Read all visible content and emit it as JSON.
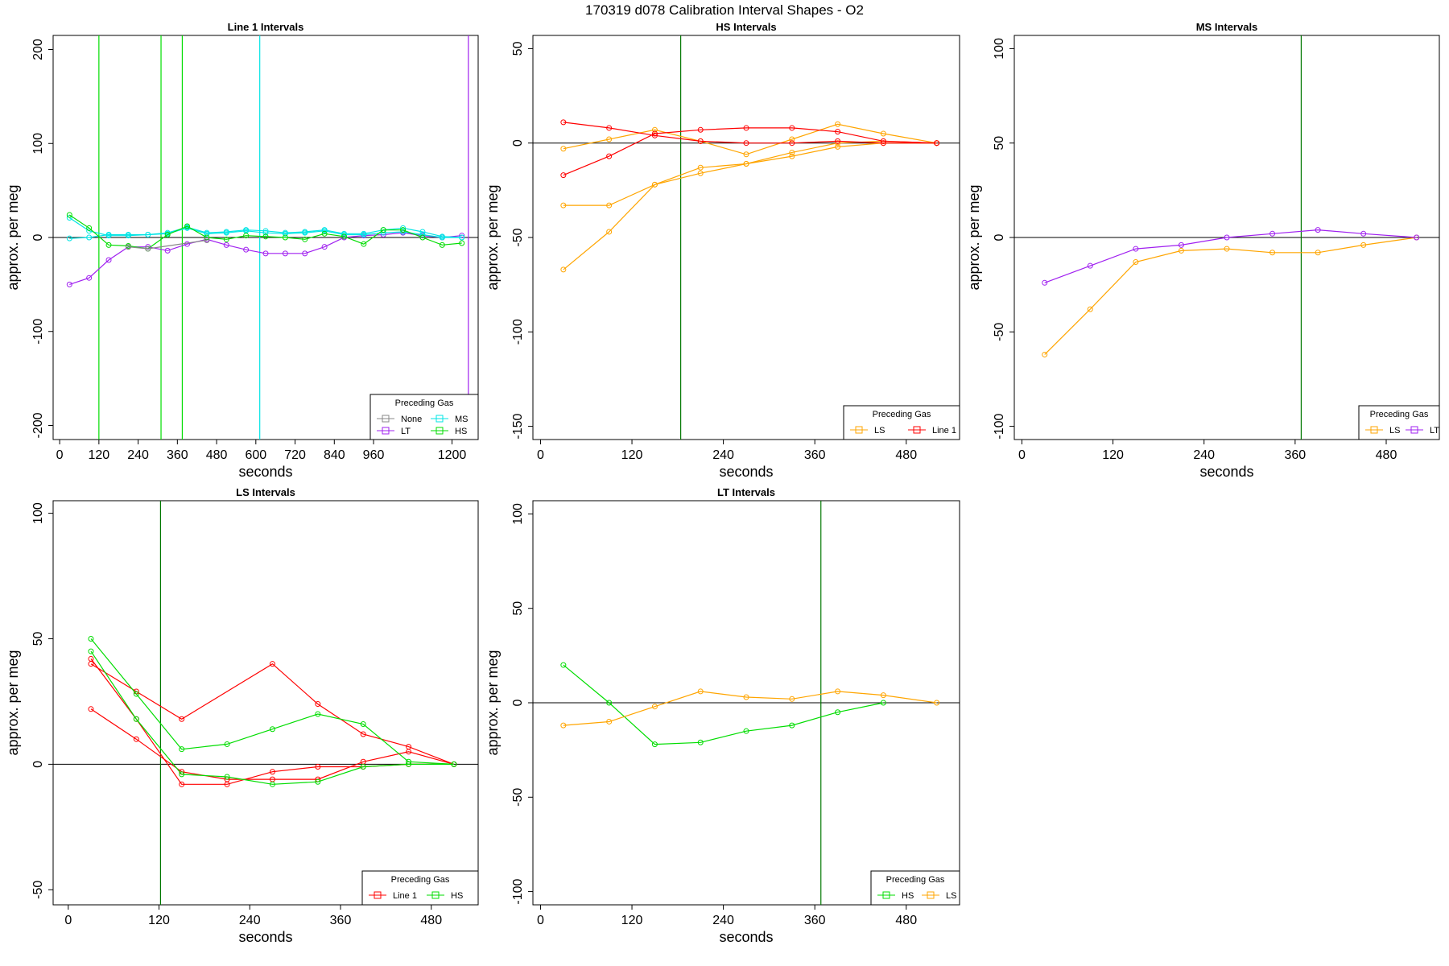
{
  "page_title": "170319   d078   Calibration Interval Shapes - O2",
  "legend_title": "Preceding Gas",
  "colors": {
    "None": "#888888",
    "LT": "#a020f0",
    "MS": "#00e5e5",
    "HS": "#00dd00",
    "LS": "#ffa500",
    "Line 1": "#ff0000",
    "vline": "#007700"
  },
  "chart_data": [
    {
      "type": "line",
      "title": "Line 1 Intervals",
      "xlabel": "seconds",
      "ylabel": "approx. per meg",
      "xlim": [
        -20,
        1280
      ],
      "ylim": [
        -215,
        215
      ],
      "xticks": [
        0,
        120,
        240,
        360,
        480,
        600,
        720,
        840,
        960,
        1200
      ],
      "yticks": [
        -200,
        -100,
        0,
        100,
        200
      ],
      "hline": 0,
      "legend_position": "bottom-right",
      "legend": [
        "None",
        "MS",
        "LT",
        "HS"
      ],
      "vlines": [
        {
          "x": 120,
          "color": "HS"
        },
        {
          "x": 310,
          "color": "HS"
        },
        {
          "x": 375,
          "color": "HS"
        },
        {
          "x": 612,
          "color": "MS"
        },
        {
          "x": 1250,
          "color": "LT"
        }
      ],
      "series": [
        {
          "name": "LT",
          "x": [
            30,
            90,
            150,
            210,
            270,
            330,
            390,
            450,
            510,
            570,
            630,
            690,
            750,
            810,
            870,
            930,
            990,
            1050,
            1110,
            1170,
            1230
          ],
          "y": [
            -50,
            -43,
            -24,
            -10,
            -10,
            -14,
            -7,
            -2,
            -8,
            -13,
            -17,
            -17,
            -17,
            -10,
            0,
            2,
            3,
            5,
            2,
            0,
            2
          ]
        },
        {
          "name": "MS",
          "x": [
            30,
            90,
            150,
            210,
            270,
            330,
            390,
            450,
            510,
            570,
            630,
            690,
            750,
            810,
            870,
            930,
            990,
            1050,
            1110,
            1170,
            1230
          ],
          "y": [
            -1,
            0,
            3,
            3,
            3,
            4,
            10,
            4,
            5,
            7,
            5,
            4,
            5,
            7,
            3,
            3,
            5,
            6,
            3,
            0,
            0
          ]
        },
        {
          "name": "MS",
          "x": [
            30,
            90,
            150,
            210,
            270,
            330,
            390,
            450,
            510,
            570,
            630,
            690,
            750,
            810,
            870,
            930,
            990,
            1050,
            1110,
            1170,
            1230
          ],
          "y": [
            21,
            7,
            2,
            2,
            3,
            5,
            11,
            5,
            6,
            8,
            7,
            5,
            6,
            8,
            4,
            4,
            8,
            10,
            6,
            1,
            0
          ]
        },
        {
          "name": "HS",
          "x": [
            30,
            90,
            150,
            210,
            270,
            330,
            390,
            450,
            510,
            570,
            630,
            690,
            750,
            810,
            870,
            930,
            990,
            1050,
            1110,
            1170,
            1230
          ],
          "y": [
            24,
            10,
            -8,
            -9,
            -12,
            3,
            12,
            0,
            -2,
            2,
            1,
            0,
            -2,
            4,
            1,
            -7,
            8,
            8,
            0,
            -8,
            -6
          ]
        },
        {
          "name": "None",
          "x": [
            210,
            270,
            450
          ],
          "y": [
            -10,
            -12,
            -3
          ]
        }
      ]
    },
    {
      "type": "line",
      "title": "HS Intervals",
      "xlabel": "seconds",
      "ylabel": "approx. per meg",
      "xlim": [
        -10,
        550
      ],
      "ylim": [
        -157,
        57
      ],
      "xticks": [
        0,
        120,
        240,
        360,
        480
      ],
      "yticks": [
        -150,
        -100,
        -50,
        0,
        50
      ],
      "hline": 0,
      "legend_position": "bottom-right",
      "legend": [
        "LS",
        "Line 1"
      ],
      "vlines": [
        {
          "x": 184,
          "color": "vline"
        }
      ],
      "series": [
        {
          "name": "LS",
          "x": [
            30,
            90,
            150,
            210,
            270,
            330,
            390,
            450,
            520
          ],
          "y": [
            -67,
            -47,
            -22,
            -13,
            -11,
            -7,
            -2,
            0,
            0
          ]
        },
        {
          "name": "LS",
          "x": [
            30,
            90,
            150,
            210,
            270,
            330,
            390,
            450,
            520
          ],
          "y": [
            -33,
            -33,
            -22,
            -16,
            -11,
            -5,
            0,
            1,
            0
          ]
        },
        {
          "name": "LS",
          "x": [
            30,
            90,
            150,
            210,
            270,
            330,
            390,
            450,
            520
          ],
          "y": [
            -3,
            2,
            7,
            1,
            -6,
            2,
            10,
            5,
            0
          ]
        },
        {
          "name": "Line 1",
          "x": [
            30,
            90,
            150,
            210,
            270,
            330,
            390,
            450,
            520
          ],
          "y": [
            -17,
            -7,
            5,
            7,
            8,
            8,
            6,
            1,
            0
          ]
        },
        {
          "name": "Line 1",
          "x": [
            30,
            90,
            150,
            210,
            270,
            330,
            390,
            450,
            520
          ],
          "y": [
            11,
            8,
            4,
            1,
            0,
            0,
            1,
            0,
            0
          ]
        }
      ]
    },
    {
      "type": "line",
      "title": "MS Intervals",
      "xlabel": "seconds",
      "ylabel": "approx. per meg",
      "xlim": [
        -10,
        550
      ],
      "ylim": [
        -107,
        107
      ],
      "xticks": [
        0,
        120,
        240,
        360,
        480
      ],
      "yticks": [
        -100,
        -50,
        0,
        50,
        100
      ],
      "hline": 0,
      "legend_position": "bottom-right",
      "legend": [
        "LS",
        "LT"
      ],
      "vlines": [
        {
          "x": 368,
          "color": "vline"
        }
      ],
      "series": [
        {
          "name": "LS",
          "x": [
            30,
            90,
            150,
            210,
            270,
            330,
            390,
            450,
            520
          ],
          "y": [
            -62,
            -38,
            -13,
            -7,
            -6,
            -8,
            -8,
            -4,
            0
          ]
        },
        {
          "name": "LT",
          "x": [
            30,
            90,
            150,
            210,
            270,
            330,
            390,
            450,
            520
          ],
          "y": [
            -24,
            -15,
            -6,
            -4,
            0,
            2,
            4,
            2,
            0
          ]
        }
      ]
    },
    {
      "type": "line",
      "title": "LS Intervals",
      "xlabel": "seconds",
      "ylabel": "approx. per meg",
      "xlim": [
        -20,
        542
      ],
      "ylim": [
        -56,
        105
      ],
      "xticks": [
        0,
        120,
        240,
        360,
        480
      ],
      "yticks": [
        -50,
        0,
        50,
        100
      ],
      "hline": 0,
      "legend_position": "bottom-right",
      "legend": [
        "Line 1",
        "HS"
      ],
      "vlines": [
        {
          "x": 122,
          "color": "vline"
        }
      ],
      "series": [
        {
          "name": "Line 1",
          "x": [
            30,
            90,
            150,
            270,
            330,
            390,
            450,
            510
          ],
          "y": [
            40,
            29,
            18,
            40,
            24,
            12,
            7,
            0
          ]
        },
        {
          "name": "Line 1",
          "x": [
            30,
            90,
            150,
            210,
            270,
            330,
            390,
            450,
            510
          ],
          "y": [
            22,
            10,
            -3,
            -6,
            -6,
            -6,
            1,
            5,
            0
          ]
        },
        {
          "name": "Line 1",
          "x": [
            30,
            90,
            150,
            210,
            270,
            330,
            390,
            450,
            510
          ],
          "y": [
            42,
            18,
            -8,
            -8,
            -3,
            -1,
            -1,
            0,
            0
          ]
        },
        {
          "name": "HS",
          "x": [
            30,
            90,
            150,
            210,
            270,
            330,
            390,
            450,
            510
          ],
          "y": [
            50,
            28,
            6,
            8,
            14,
            20,
            16,
            1,
            0
          ]
        },
        {
          "name": "HS",
          "x": [
            30,
            90,
            150,
            210,
            270,
            330,
            390,
            450,
            510
          ],
          "y": [
            45,
            18,
            -4,
            -5,
            -8,
            -7,
            -1,
            0,
            0
          ]
        }
      ]
    },
    {
      "type": "line",
      "title": "LT Intervals",
      "xlabel": "seconds",
      "ylabel": "approx. per meg",
      "xlim": [
        -10,
        550
      ],
      "ylim": [
        -107,
        107
      ],
      "xticks": [
        0,
        120,
        240,
        360,
        480
      ],
      "yticks": [
        -100,
        -50,
        0,
        50,
        100
      ],
      "hline": 0,
      "legend_position": "bottom-right",
      "legend": [
        "HS",
        "LS"
      ],
      "vlines": [
        {
          "x": 368,
          "color": "vline"
        }
      ],
      "series": [
        {
          "name": "HS",
          "x": [
            30,
            90,
            150,
            210,
            270,
            330,
            390,
            450
          ],
          "y": [
            20,
            0,
            -22,
            -21,
            -15,
            -12,
            -5,
            0
          ]
        },
        {
          "name": "LS",
          "x": [
            30,
            90,
            150,
            210,
            270,
            330,
            390,
            450,
            520
          ],
          "y": [
            -12,
            -10,
            -2,
            6,
            3,
            2,
            6,
            4,
            0
          ]
        }
      ]
    }
  ]
}
